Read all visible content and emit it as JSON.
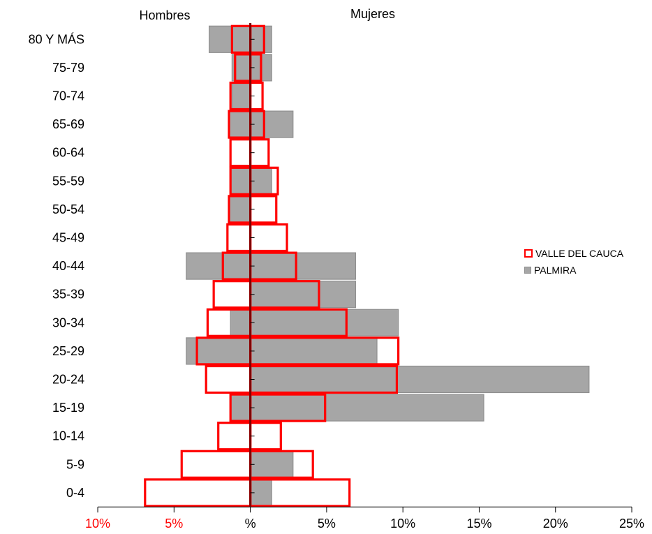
{
  "chart_data": {
    "type": "bar",
    "orientation": "horizontal-population-pyramid",
    "title": "",
    "left_side_label": "Hombres",
    "right_side_label": "Mujeres",
    "categories": [
      "0-4",
      "5-9",
      "10-14",
      "15-19",
      "20-24",
      "25-29",
      "30-34",
      "35-39",
      "40-44",
      "45-49",
      "50-54",
      "55-59",
      "60-64",
      "65-69",
      "70-74",
      "75-79",
      "80 Y MÁS"
    ],
    "x_ticks": [
      {
        "value": -10,
        "label": "10%"
      },
      {
        "value": -5,
        "label": "5%"
      },
      {
        "value": 0,
        "label": "%"
      },
      {
        "value": 5,
        "label": "5%"
      },
      {
        "value": 10,
        "label": "10%"
      },
      {
        "value": 15,
        "label": "15%"
      },
      {
        "value": 20,
        "label": "20%"
      },
      {
        "value": 25,
        "label": "25%"
      }
    ],
    "xlim": [
      -10,
      25
    ],
    "series": [
      {
        "name": "PALMIRA",
        "style": "filled",
        "color": "#a6a6a6",
        "hombres": [
          0,
          0,
          0,
          1.3,
          0,
          4.2,
          1.3,
          0,
          4.2,
          0,
          1.4,
          1.3,
          0,
          1.4,
          1.2,
          1.2,
          2.7
        ],
        "mujeres": [
          1.4,
          2.8,
          0,
          15.3,
          22.2,
          8.3,
          9.7,
          6.9,
          6.9,
          0,
          0,
          1.4,
          0,
          2.8,
          0,
          1.4,
          1.4
        ]
      },
      {
        "name": "VALLE DEL CAUCA",
        "style": "outline",
        "color": "#ff0000",
        "hombres": [
          6.9,
          4.5,
          2.1,
          1.3,
          2.9,
          3.5,
          2.8,
          2.4,
          1.8,
          1.5,
          1.4,
          1.3,
          1.3,
          1.4,
          1.3,
          1.0,
          1.2
        ],
        "mujeres": [
          6.5,
          4.1,
          2.0,
          4.9,
          9.6,
          9.7,
          6.3,
          4.5,
          3.0,
          2.4,
          1.7,
          1.8,
          1.2,
          0.9,
          0.8,
          0.7,
          0.9
        ]
      }
    ],
    "legend": {
      "placement": "right",
      "items": [
        {
          "label": "VALLE DEL CAUCA",
          "style": "outline"
        },
        {
          "label": "PALMIRA",
          "style": "filled"
        }
      ]
    },
    "colors": {
      "palmira_fill": "#a6a6a6",
      "palmira_stroke": "#8f8f8f",
      "valle_stroke": "#ff0000",
      "axis_center": "#7f0000",
      "negative_tick_label": "#ff0000",
      "positive_tick_label": "#000000"
    }
  }
}
